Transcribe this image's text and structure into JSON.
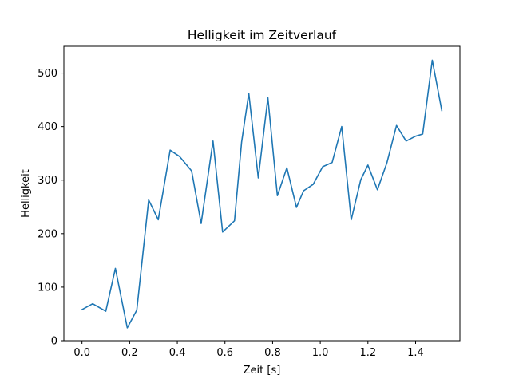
{
  "chart_data": {
    "type": "line",
    "title": "Helligkeit im Zeitverlauf",
    "xlabel": "Zeit [s]",
    "ylabel": "Helligkeit",
    "xlim": [
      -0.076,
      1.586
    ],
    "ylim": [
      0,
      550
    ],
    "xticks": [
      0.0,
      0.2,
      0.4,
      0.6,
      0.8,
      1.0,
      1.2,
      1.4
    ],
    "xtick_labels": [
      "0.0",
      "0.2",
      "0.4",
      "0.6",
      "0.8",
      "1.0",
      "1.2",
      "1.4"
    ],
    "yticks": [
      0,
      100,
      200,
      300,
      400,
      500
    ],
    "ytick_labels": [
      "0",
      "100",
      "200",
      "300",
      "400",
      "500"
    ],
    "grid": false,
    "color": "#1f77b4",
    "series": [
      {
        "x": [
          0.0,
          0.045,
          0.1,
          0.14,
          0.19,
          0.23,
          0.28,
          0.32,
          0.37,
          0.41,
          0.46,
          0.5,
          0.55,
          0.59,
          0.64,
          0.67,
          0.7,
          0.74,
          0.78,
          0.82,
          0.86,
          0.9,
          0.93,
          0.97,
          1.01,
          1.05,
          1.09,
          1.13,
          1.17,
          1.2,
          1.24,
          1.28,
          1.32,
          1.36,
          1.4,
          1.43,
          1.47,
          1.51
        ],
        "y": [
          58,
          69,
          55,
          135,
          24,
          57,
          263,
          226,
          356,
          344,
          317,
          219,
          373,
          203,
          224,
          371,
          462,
          304,
          454,
          271,
          323,
          249,
          280,
          292,
          325,
          333,
          400,
          226,
          301,
          328,
          282,
          333,
          402,
          373,
          382,
          386,
          524,
          430
        ]
      }
    ]
  }
}
